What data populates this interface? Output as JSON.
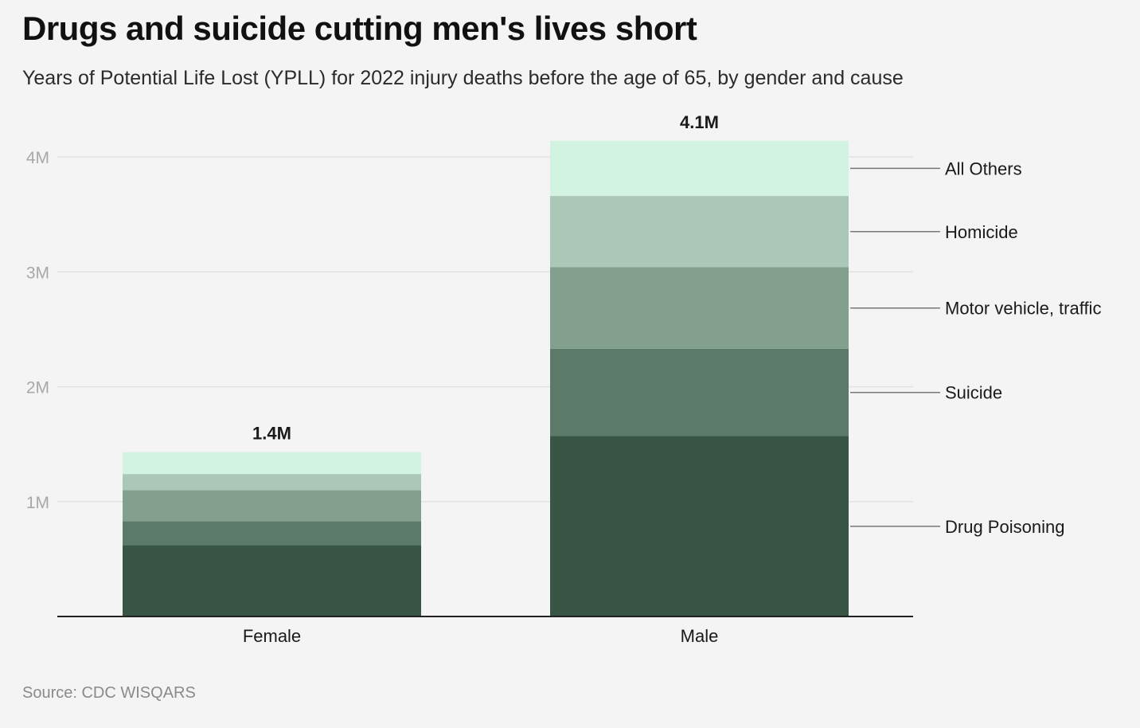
{
  "title": "Drugs and suicide cutting men's lives short",
  "subtitle": "Years of Potential Life Lost (YPLL) for 2022 injury deaths before the age of 65, by gender and cause",
  "source": "Source: CDC WISQARS",
  "chart_data": {
    "type": "bar",
    "stacked": true,
    "categories": [
      "Female",
      "Male"
    ],
    "series": [
      {
        "name": "Drug Poisoning",
        "values": [
          620000,
          1570000
        ],
        "color": "#385546"
      },
      {
        "name": "Suicide",
        "values": [
          210000,
          760000
        ],
        "color": "#5c7a6a"
      },
      {
        "name": "Motor vehicle, traffic",
        "values": [
          270000,
          710000
        ],
        "color": "#839f8e"
      },
      {
        "name": "Homicide",
        "values": [
          140000,
          620000
        ],
        "color": "#abc7b7"
      },
      {
        "name": "All Others",
        "values": [
          190000,
          480000
        ],
        "color": "#d2f2e2"
      }
    ],
    "totals": [
      "1.4M",
      "4.1M"
    ],
    "ylim": [
      0,
      4000000
    ],
    "yticks": [
      {
        "value": 1000000,
        "label": "1M"
      },
      {
        "value": 2000000,
        "label": "2M"
      },
      {
        "value": 3000000,
        "label": "3M"
      },
      {
        "value": 4000000,
        "label": "4M"
      }
    ],
    "xlabel": "",
    "ylabel": "",
    "grid": true,
    "legend": "right"
  }
}
